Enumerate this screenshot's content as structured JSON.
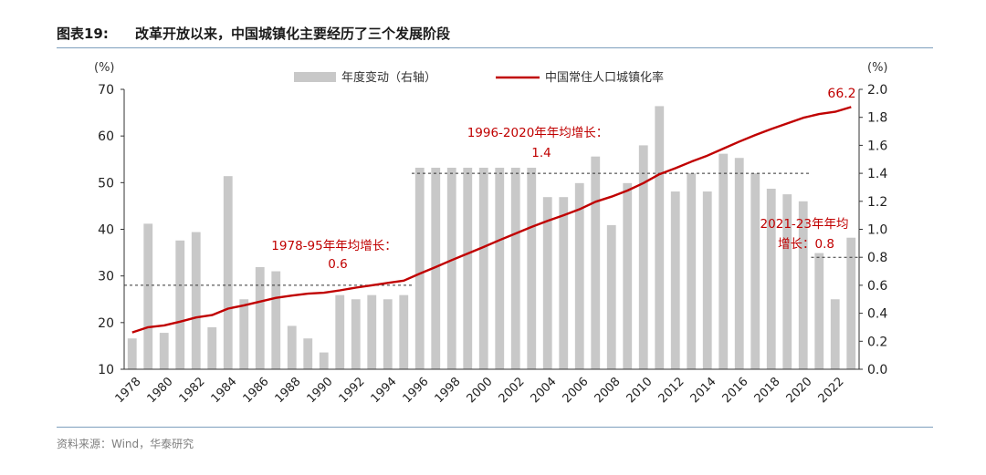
{
  "figure": {
    "label": "图表19:",
    "title": "改革开放以来，中国城镇化主要经历了三个发展阶段",
    "source": "资料来源：Wind，华泰研究"
  },
  "chart_data": {
    "type": "bar+line",
    "categories": [
      "1978",
      "1979",
      "1980",
      "1981",
      "1982",
      "1983",
      "1984",
      "1985",
      "1986",
      "1987",
      "1988",
      "1989",
      "1990",
      "1991",
      "1992",
      "1993",
      "1994",
      "1995",
      "1996",
      "1997",
      "1998",
      "1999",
      "2000",
      "2001",
      "2002",
      "2003",
      "2004",
      "2005",
      "2006",
      "2007",
      "2008",
      "2009",
      "2010",
      "2011",
      "2012",
      "2013",
      "2014",
      "2015",
      "2016",
      "2017",
      "2018",
      "2019",
      "2020",
      "2021",
      "2022",
      "2023"
    ],
    "x_tick_labels": [
      "1978",
      "1980",
      "1982",
      "1984",
      "1986",
      "1988",
      "1990",
      "1992",
      "1994",
      "1996",
      "1998",
      "2000",
      "2002",
      "2004",
      "2006",
      "2008",
      "2010",
      "2012",
      "2014",
      "2016",
      "2018",
      "2020",
      "2022"
    ],
    "series": [
      {
        "name": "年度变动（右轴）",
        "type": "bar",
        "axis": "right",
        "color": "#c8c8c8",
        "values": [
          0.22,
          1.04,
          0.26,
          0.92,
          0.98,
          0.3,
          1.38,
          0.5,
          0.73,
          0.7,
          0.31,
          0.22,
          0.12,
          0.53,
          0.5,
          0.53,
          0.5,
          0.53,
          1.44,
          1.44,
          1.44,
          1.44,
          1.44,
          1.44,
          1.44,
          1.44,
          1.23,
          1.23,
          1.33,
          1.52,
          1.03,
          1.33,
          1.6,
          1.88,
          1.27,
          1.4,
          1.27,
          1.54,
          1.51,
          1.4,
          1.29,
          1.25,
          1.2,
          0.83,
          0.5,
          0.94
        ]
      },
      {
        "name": "中国常住人口城镇化率",
        "type": "line",
        "axis": "left",
        "color": "#c00000",
        "values": [
          17.9,
          19.0,
          19.4,
          20.2,
          21.1,
          21.6,
          23.0,
          23.7,
          24.5,
          25.3,
          25.8,
          26.2,
          26.4,
          26.9,
          27.5,
          28.0,
          28.5,
          29.0,
          30.5,
          31.9,
          33.4,
          34.8,
          36.2,
          37.7,
          39.1,
          40.5,
          41.8,
          43.0,
          44.3,
          45.9,
          47.0,
          48.3,
          49.9,
          51.8,
          53.1,
          54.5,
          55.8,
          57.3,
          58.8,
          60.2,
          61.5,
          62.7,
          63.9,
          64.7,
          65.2,
          66.2
        ]
      }
    ],
    "y_left": {
      "label": "(%)",
      "min": 10,
      "max": 70,
      "ticks": [
        "10",
        "20",
        "30",
        "40",
        "50",
        "60",
        "70"
      ]
    },
    "y_right": {
      "label": "(%)",
      "min": 0,
      "max": 2,
      "ticks": [
        "0.0",
        "0.2",
        "0.4",
        "0.6",
        "0.8",
        "1.0",
        "1.2",
        "1.4",
        "1.6",
        "1.8",
        "2.0"
      ]
    },
    "legend_position": "top-center",
    "grid": false,
    "annotations": {
      "end_label": "66.2",
      "phase1": {
        "line1": "1978-95年年均增长：",
        "line2": "0.6",
        "avg": 0.6,
        "from": "1978",
        "to": "1995"
      },
      "phase2": {
        "line1": "1996-2020年年均增长：",
        "line2": "1.4",
        "avg": 1.4,
        "from": "1996",
        "to": "2020"
      },
      "phase3": {
        "line1": "2021-23年年均",
        "line2": "增长：0.8",
        "avg": 0.8,
        "from": "2021",
        "to": "2023"
      }
    },
    "text_color": "#c00000"
  }
}
